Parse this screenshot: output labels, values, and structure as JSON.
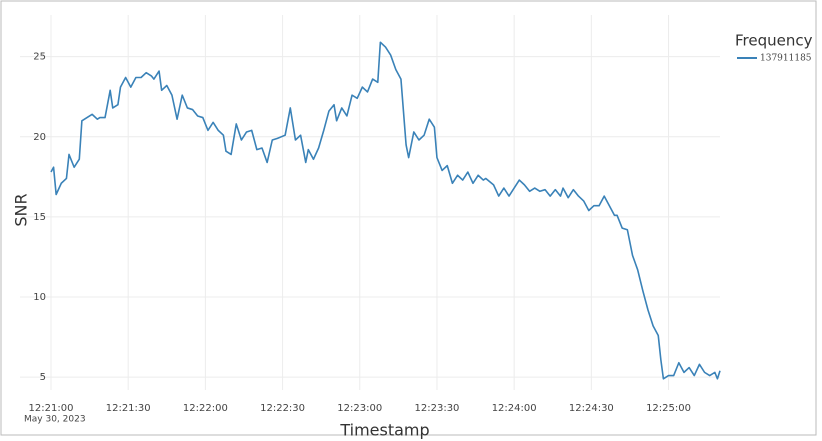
{
  "chart_data": {
    "type": "line",
    "xlabel": "Timestamp",
    "ylabel": "SNR",
    "x_date_label": "May 30, 2023",
    "legend_title": "Frequency",
    "legend_position": "top-right",
    "grid": true,
    "xlim": [
      "12:21:00",
      "12:25:20"
    ],
    "ylim": [
      4.2,
      27.6
    ],
    "xticks": [
      "12:21:00",
      "12:21:30",
      "12:22:00",
      "12:22:30",
      "12:23:00",
      "12:23:30",
      "12:24:00",
      "12:24:30",
      "12:25:00"
    ],
    "yticks": [
      5,
      10,
      15,
      20,
      25
    ],
    "x": [
      "12:21:00",
      "12:21:01",
      "12:21:02",
      "12:21:04",
      "12:21:06",
      "12:21:07",
      "12:21:09",
      "12:21:11",
      "12:21:12",
      "12:21:14",
      "12:21:16",
      "12:21:18",
      "12:21:19",
      "12:21:21",
      "12:21:23",
      "12:21:24",
      "12:21:26",
      "12:21:27",
      "12:21:29",
      "12:21:31",
      "12:21:33",
      "12:21:35",
      "12:21:37",
      "12:21:39",
      "12:21:40",
      "12:21:42",
      "12:21:43",
      "12:21:45",
      "12:21:47",
      "12:21:49",
      "12:21:51",
      "12:21:53",
      "12:21:55",
      "12:21:57",
      "12:21:59",
      "12:22:01",
      "12:22:03",
      "12:22:05",
      "12:22:07",
      "12:22:08",
      "12:22:10",
      "12:22:12",
      "12:22:14",
      "12:22:16",
      "12:22:18",
      "12:22:20",
      "12:22:22",
      "12:22:24",
      "12:22:26",
      "12:22:28",
      "12:22:31",
      "12:22:33",
      "12:22:35",
      "12:22:37",
      "12:22:39",
      "12:22:40",
      "12:22:42",
      "12:22:44",
      "12:22:46",
      "12:22:48",
      "12:22:50",
      "12:22:51",
      "12:22:53",
      "12:22:55",
      "12:22:57",
      "12:22:59",
      "12:23:01",
      "12:23:03",
      "12:23:05",
      "12:23:07",
      "12:23:08",
      "12:23:10",
      "12:23:12",
      "12:23:14",
      "12:23:16",
      "12:23:18",
      "12:23:19",
      "12:23:21",
      "12:23:23",
      "12:23:25",
      "12:23:27",
      "12:23:29",
      "12:23:30",
      "12:23:32",
      "12:23:34",
      "12:23:36",
      "12:23:38",
      "12:23:40",
      "12:23:42",
      "12:23:44",
      "12:23:46",
      "12:23:48",
      "12:23:49",
      "12:23:52",
      "12:23:54",
      "12:23:56",
      "12:23:58",
      "12:24:00",
      "12:24:02",
      "12:24:04",
      "12:24:06",
      "12:24:08",
      "12:24:10",
      "12:24:12",
      "12:24:14",
      "12:24:16",
      "12:24:18",
      "12:24:19",
      "12:24:21",
      "12:24:23",
      "12:24:25",
      "12:24:27",
      "12:24:29",
      "12:24:31",
      "12:24:33",
      "12:24:35",
      "12:24:37",
      "12:24:39",
      "12:24:40",
      "12:24:42",
      "12:24:44",
      "12:24:46",
      "12:24:48",
      "12:24:50",
      "12:24:52",
      "12:24:54",
      "12:24:56",
      "12:24:57",
      "12:24:58",
      "12:25:00",
      "12:25:02",
      "12:25:04",
      "12:25:06",
      "12:25:08",
      "12:25:10",
      "12:25:12",
      "12:25:14",
      "12:25:16",
      "12:25:18",
      "12:25:19",
      "12:25:20"
    ],
    "series": [
      {
        "name": "137911185",
        "color": "#3a82b8",
        "values": [
          17.8,
          18.1,
          16.4,
          17.1,
          17.4,
          18.9,
          18.1,
          18.6,
          21.0,
          21.2,
          21.4,
          21.1,
          21.2,
          21.2,
          22.9,
          21.8,
          22.0,
          23.1,
          23.7,
          23.1,
          23.7,
          23.7,
          24.0,
          23.8,
          23.6,
          24.1,
          22.9,
          23.2,
          22.6,
          21.1,
          22.6,
          21.8,
          21.7,
          21.3,
          21.2,
          20.4,
          20.9,
          20.4,
          20.1,
          19.1,
          18.9,
          20.8,
          19.8,
          20.3,
          20.4,
          19.2,
          19.3,
          18.4,
          19.8,
          19.9,
          20.1,
          21.8,
          19.8,
          20.1,
          18.4,
          19.2,
          18.6,
          19.3,
          20.4,
          21.6,
          22.0,
          21.0,
          21.8,
          21.3,
          22.6,
          22.4,
          23.1,
          22.8,
          23.6,
          23.4,
          25.9,
          25.6,
          25.1,
          24.2,
          23.6,
          19.5,
          18.7,
          20.3,
          19.8,
          20.1,
          21.1,
          20.6,
          18.7,
          17.9,
          18.2,
          17.1,
          17.6,
          17.3,
          17.8,
          17.1,
          17.6,
          17.3,
          17.4,
          17.0,
          16.3,
          16.8,
          16.3,
          16.8,
          17.3,
          17.0,
          16.6,
          16.8,
          16.6,
          16.7,
          16.3,
          16.7,
          16.3,
          16.8,
          16.2,
          16.7,
          16.3,
          16.0,
          15.4,
          15.7,
          15.7,
          16.3,
          15.7,
          15.1,
          15.1,
          14.3,
          14.2,
          12.6,
          11.7,
          10.4,
          9.2,
          8.2,
          7.6,
          6.1,
          4.9,
          5.1,
          5.1,
          5.9,
          5.3,
          5.6,
          5.1,
          5.8,
          5.3,
          5.1,
          5.3,
          4.9,
          5.4
        ]
      }
    ]
  }
}
